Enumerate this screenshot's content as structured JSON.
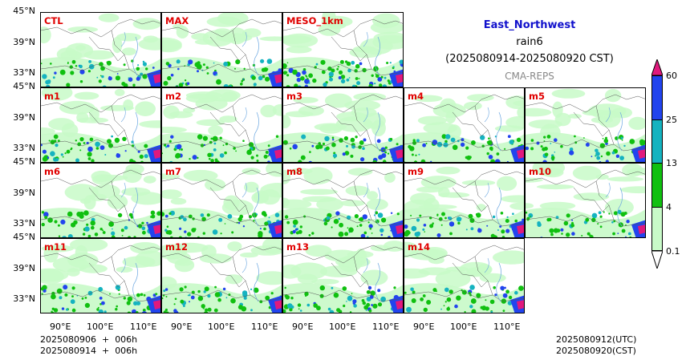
{
  "title": {
    "region": "East_Northwest",
    "variable": "rain6",
    "period": "(2025080914-2025080920 CST)",
    "system": "CMA-REPS"
  },
  "panels": [
    {
      "label": "CTL"
    },
    {
      "label": "MAX"
    },
    {
      "label": "MESO_1km"
    },
    {
      "label": "m1"
    },
    {
      "label": "m2"
    },
    {
      "label": "m3"
    },
    {
      "label": "m4"
    },
    {
      "label": "m5"
    },
    {
      "label": "m6"
    },
    {
      "label": "m7"
    },
    {
      "label": "m8"
    },
    {
      "label": "m9"
    },
    {
      "label": "m10"
    },
    {
      "label": "m11"
    },
    {
      "label": "m12"
    },
    {
      "label": "m13"
    },
    {
      "label": "m14"
    }
  ],
  "axes": {
    "y_top": "45°N",
    "y_ticks": [
      "39°N",
      "33°N"
    ],
    "x_ticks": [
      "90°E",
      "100°E",
      "110°E"
    ]
  },
  "colorbar": {
    "labels": [
      "60",
      "25",
      "13",
      "4",
      "0.1"
    ],
    "colors": [
      "#e0197d",
      "#2244ee",
      "#15b3c0",
      "#10c010",
      "#c8fac8"
    ]
  },
  "footer": {
    "left_line1": "2025080906  +  006h",
    "left_line2": "2025080914  +  006h",
    "right_line1": "2025080912(UTC)",
    "right_line2": "2025080920(CST)"
  }
}
